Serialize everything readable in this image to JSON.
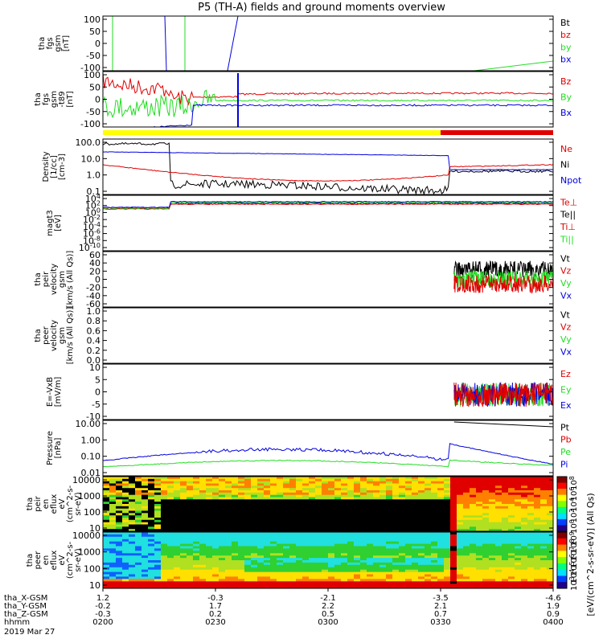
{
  "title": "P5 (TH-A) fields and ground moments overview",
  "colors": {
    "black": "#000000",
    "red": "#e00000",
    "green": "#22dd22",
    "blue": "#0000e0",
    "yellow": "#ffff00"
  },
  "chart_data": {
    "type": "line",
    "time_range": [
      "0200",
      "0400"
    ],
    "date": "2019 Mar 27",
    "panels": [
      {
        "id": "fgs_gsm",
        "ylabel": [
          "tha",
          "fgs",
          "gsm",
          "[nT]"
        ],
        "ylim": [
          -100,
          100
        ],
        "yscale": "linear",
        "yticks": [
          "100",
          "50",
          "0",
          "-50",
          "-100"
        ],
        "legend": [
          "Bt",
          "bz",
          "by",
          "bx"
        ],
        "legend_colors": [
          "black",
          "red",
          "green",
          "blue"
        ]
      },
      {
        "id": "fgs_gsm_t89",
        "ylabel": [
          "tha",
          "fgs",
          "gsm",
          "-t89",
          "[nT]"
        ],
        "ylim": [
          -125,
          100
        ],
        "yscale": "linear",
        "yticks": [
          "100",
          "50",
          "0",
          "-50",
          "-100"
        ],
        "legend": [
          "Bz",
          "By",
          "Bx"
        ],
        "legend_colors": [
          "red",
          "green",
          "blue"
        ]
      },
      {
        "id": "density",
        "ylabel": [
          "Density",
          "[1/cc]",
          "[cm-3]"
        ],
        "ylim": [
          0.01,
          200
        ],
        "yscale": "log",
        "yticks": [
          "100.0",
          "10.0",
          "1.0",
          "0.1"
        ],
        "legend": [
          "Ne",
          "Ni",
          "Npot"
        ],
        "legend_colors": [
          "red",
          "black",
          "blue"
        ]
      },
      {
        "id": "temperature",
        "ylabel": [
          "magt3",
          "[eV]"
        ],
        "ylim": [
          1e-10,
          100000.0
        ],
        "yscale": "log",
        "yticks": [
          "10^4",
          "10^2",
          "10^0",
          "10^-2",
          "10^-4",
          "10^-6",
          "10^-8",
          "10^-10"
        ],
        "legend": [
          "Te⊥",
          "Te||",
          "Ti⊥",
          "Ti||"
        ],
        "legend_colors": [
          "red",
          "black",
          "red",
          "green"
        ]
      },
      {
        "id": "peir_velocity",
        "ylabel": [
          "tha",
          "peir",
          "velocity",
          "gsm",
          "[km/s (All Qs)]"
        ],
        "ylim": [
          -60,
          60
        ],
        "yscale": "linear",
        "yticks": [
          "60",
          "40",
          "20",
          "0",
          "-20",
          "-40",
          "-60"
        ],
        "legend": [
          "Vt",
          "Vz",
          "Vy",
          "Vx"
        ],
        "legend_colors": [
          "black",
          "red",
          "green",
          "blue"
        ]
      },
      {
        "id": "peer_velocity",
        "ylabel": [
          "tha",
          "peer",
          "velocity",
          "gsm",
          "[km/s (All Qs)]"
        ],
        "ylim": [
          0,
          1
        ],
        "yscale": "linear",
        "yticks": [
          "1.0",
          "0.8",
          "0.6",
          "0.4",
          "0.2",
          "0.0"
        ],
        "legend": [
          "Vt",
          "Vz",
          "Vy",
          "Vx"
        ],
        "legend_colors": [
          "black",
          "red",
          "green",
          "blue"
        ]
      },
      {
        "id": "efield",
        "ylabel": [
          "E=-VxB",
          "[mV/m]"
        ],
        "ylim": [
          -12,
          12
        ],
        "yscale": "linear",
        "yticks": [
          "10",
          "5",
          "0",
          "-5",
          "-10"
        ],
        "legend": [
          "Ez",
          "Ey",
          "Ex"
        ],
        "legend_colors": [
          "red",
          "green",
          "blue"
        ]
      },
      {
        "id": "pressure",
        "ylabel": [
          "Pressure",
          "[nPa]"
        ],
        "ylim": [
          0.005,
          20
        ],
        "yscale": "log",
        "yticks": [
          "10.00",
          "1.00",
          "0.10",
          "0.01"
        ],
        "legend": [
          "Pt",
          "Pb",
          "Pe",
          "Pi"
        ],
        "legend_colors": [
          "black",
          "red",
          "green",
          "blue"
        ]
      },
      {
        "id": "peir_en_eflux",
        "type": "heatmap",
        "ylabel": [
          "tha",
          "peir",
          "en",
          "eflux",
          "eV",
          "(cm^2-s-",
          "sr-eV)"
        ],
        "ylim": [
          5,
          25000
        ],
        "yscale": "log",
        "yticks": [
          "10000",
          "1000",
          "100",
          "10"
        ],
        "colorbar_ticks": [
          "10^8",
          "10^6",
          "10^4",
          "10^2",
          "10^0"
        ]
      },
      {
        "id": "peer_en_eflux",
        "type": "heatmap",
        "ylabel": [
          "tha",
          "peer",
          "en",
          "eflux",
          "eV",
          "(cm^2-s-",
          "sr-eV)"
        ],
        "ylim": [
          5,
          25000
        ],
        "yscale": "log",
        "yticks": [
          "10000",
          "1000",
          "100",
          "10"
        ],
        "colorbar_ticks": [
          "10^9",
          "10^8",
          "10^7",
          "10^6",
          "10^5",
          "10^4",
          "10^3"
        ]
      }
    ],
    "colorbar_label": "[eV/(cm^2-s-sr-eV)] (All Qs)",
    "status_bar": {
      "segments": [
        {
          "from": "0200",
          "to": "0330",
          "color": "yellow"
        },
        {
          "from": "0330",
          "to": "0400",
          "color": "red"
        }
      ]
    },
    "x_axis": {
      "row_labels": [
        "tha_X-GSM",
        "tha_Y-GSM",
        "tha_Z-GSM",
        "hhmm",
        "2019 Mar 27"
      ],
      "ticks": [
        {
          "hhmm": "0200",
          "x": "1.2",
          "y": "-0.2",
          "z": "-0.3"
        },
        {
          "hhmm": "0230",
          "x": "-0.3",
          "y": "1.7",
          "z": "0.2"
        },
        {
          "hhmm": "0300",
          "x": "-2.1",
          "y": "2.2",
          "z": "0.5"
        },
        {
          "hhmm": "0330",
          "x": "-3.5",
          "y": "2.1",
          "z": "0.7"
        },
        {
          "hhmm": "0400",
          "x": "-4.6",
          "y": "1.9",
          "z": "0.9"
        }
      ]
    }
  }
}
